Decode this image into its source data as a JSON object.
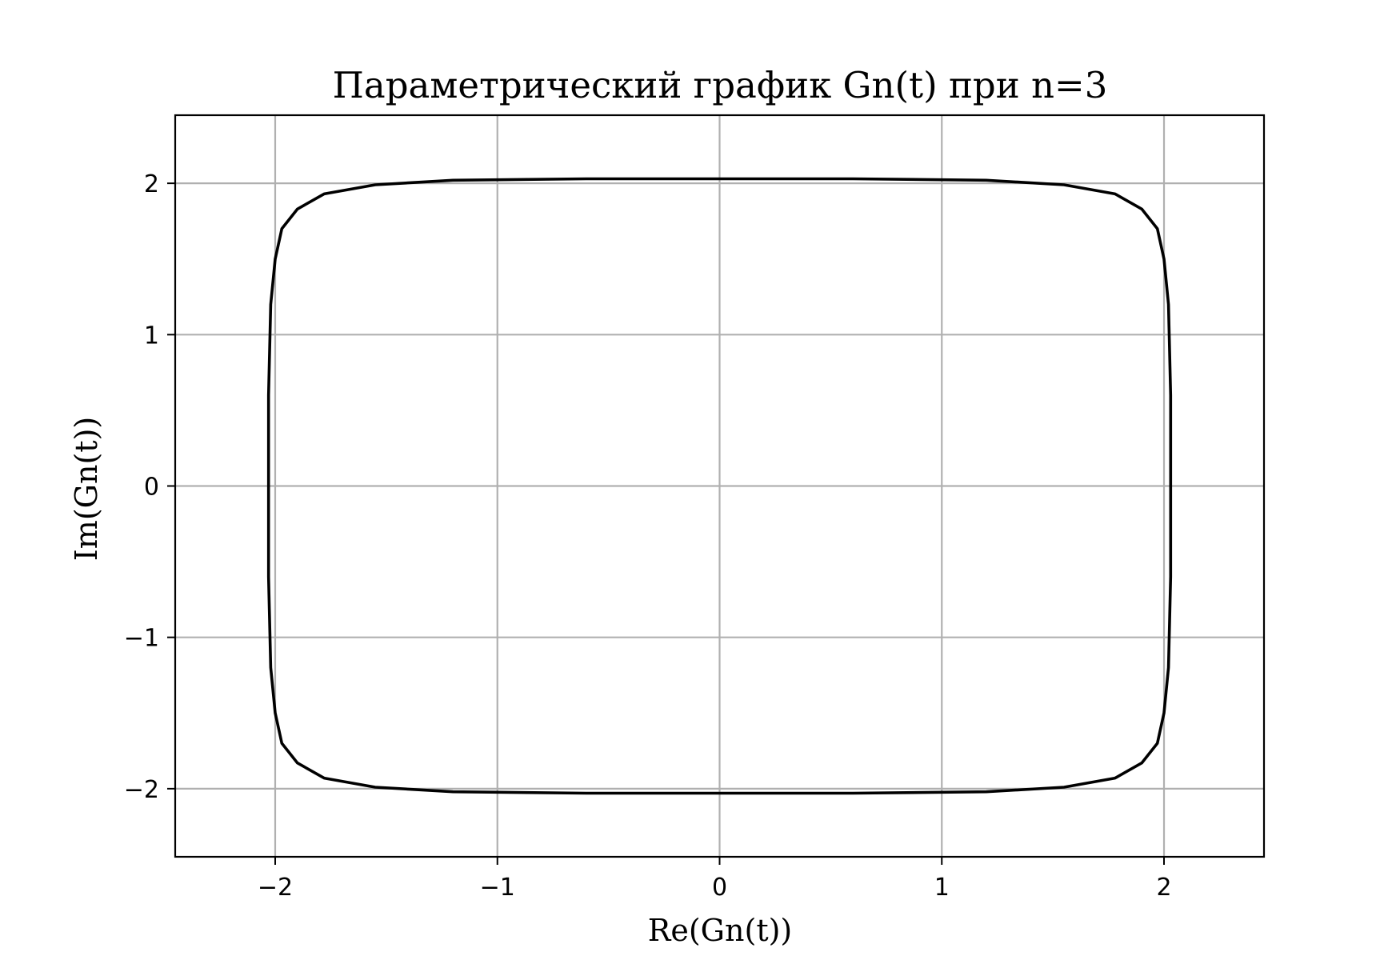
{
  "chart_data": {
    "type": "line",
    "title": "Параметрический график Gn(t) при n=3",
    "xlabel": "Re(Gn(t))",
    "ylabel": "Im(Gn(t))",
    "xlim": [
      -2.45,
      2.45
    ],
    "ylim": [
      -2.45,
      2.45
    ],
    "xticks": [
      -2,
      -1,
      0,
      1,
      2
    ],
    "yticks": [
      -2,
      -1,
      0,
      1,
      2
    ],
    "xtick_labels": [
      "−2",
      "−1",
      "0",
      "1",
      "2"
    ],
    "ytick_labels": [
      "−2",
      "−1",
      "0",
      "1",
      "2"
    ],
    "grid": true,
    "series": [
      {
        "color": "#000000",
        "x": [
          2.03,
          2.03,
          2.02,
          2.0,
          1.97,
          1.9,
          1.78,
          1.55,
          1.2,
          0.6,
          0.0,
          -0.6,
          -1.2,
          -1.55,
          -1.78,
          -1.9,
          -1.97,
          -2.0,
          -2.02,
          -2.03,
          -2.03,
          -2.03,
          -2.02,
          -2.0,
          -1.97,
          -1.9,
          -1.78,
          -1.55,
          -1.2,
          -0.6,
          0.0,
          0.6,
          1.2,
          1.55,
          1.78,
          1.9,
          1.97,
          2.0,
          2.02,
          2.03,
          2.03
        ],
        "y": [
          0.0,
          0.6,
          1.2,
          1.5,
          1.7,
          1.83,
          1.93,
          1.99,
          2.02,
          2.03,
          2.03,
          2.03,
          2.02,
          1.99,
          1.93,
          1.83,
          1.7,
          1.5,
          1.2,
          0.6,
          0.0,
          -0.6,
          -1.2,
          -1.5,
          -1.7,
          -1.83,
          -1.93,
          -1.99,
          -2.02,
          -2.03,
          -2.03,
          -2.03,
          -2.02,
          -1.99,
          -1.93,
          -1.83,
          -1.7,
          -1.5,
          -1.2,
          -0.6,
          0.0
        ]
      }
    ]
  }
}
